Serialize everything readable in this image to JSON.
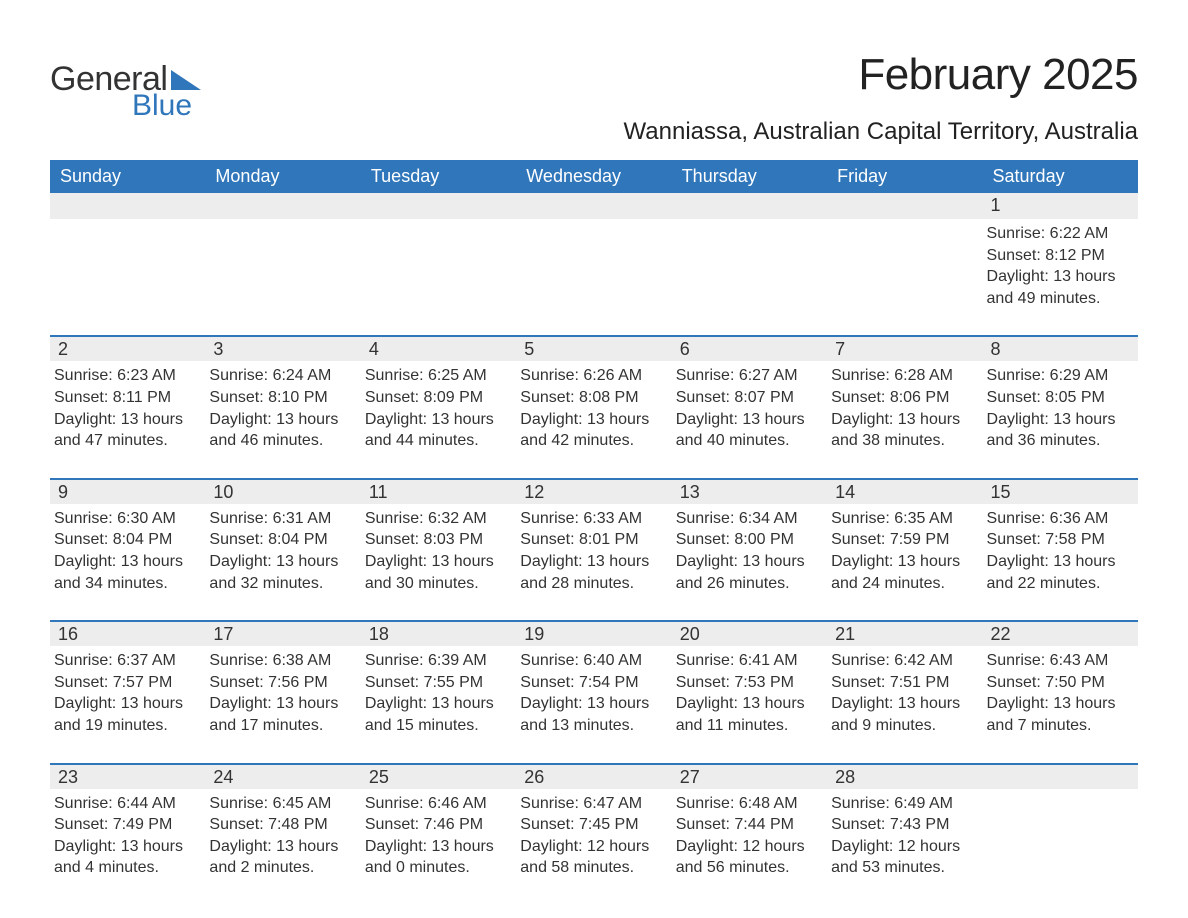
{
  "logo": {
    "text1": "General",
    "text2": "Blue",
    "tri_color": "#2f76bb"
  },
  "title": "February 2025",
  "location": "Wanniassa, Australian Capital Territory, Australia",
  "colors": {
    "header_bg": "#2f76bb",
    "header_text": "#ffffff",
    "daynum_bg": "#ededed",
    "border_top": "#2f76bb",
    "text": "#333333",
    "background": "#ffffff"
  },
  "fonts": {
    "title_pt": 44,
    "location_pt": 24,
    "header_pt": 18,
    "body_pt": 16
  },
  "day_headers": [
    "Sunday",
    "Monday",
    "Tuesday",
    "Wednesday",
    "Thursday",
    "Friday",
    "Saturday"
  ],
  "weeks": [
    [
      {
        "n": "",
        "sr": "",
        "ss": "",
        "dl": ""
      },
      {
        "n": "",
        "sr": "",
        "ss": "",
        "dl": ""
      },
      {
        "n": "",
        "sr": "",
        "ss": "",
        "dl": ""
      },
      {
        "n": "",
        "sr": "",
        "ss": "",
        "dl": ""
      },
      {
        "n": "",
        "sr": "",
        "ss": "",
        "dl": ""
      },
      {
        "n": "",
        "sr": "",
        "ss": "",
        "dl": ""
      },
      {
        "n": "1",
        "sr": "Sunrise: 6:22 AM",
        "ss": "Sunset: 8:12 PM",
        "dl": "Daylight: 13 hours and 49 minutes."
      }
    ],
    [
      {
        "n": "2",
        "sr": "Sunrise: 6:23 AM",
        "ss": "Sunset: 8:11 PM",
        "dl": "Daylight: 13 hours and 47 minutes."
      },
      {
        "n": "3",
        "sr": "Sunrise: 6:24 AM",
        "ss": "Sunset: 8:10 PM",
        "dl": "Daylight: 13 hours and 46 minutes."
      },
      {
        "n": "4",
        "sr": "Sunrise: 6:25 AM",
        "ss": "Sunset: 8:09 PM",
        "dl": "Daylight: 13 hours and 44 minutes."
      },
      {
        "n": "5",
        "sr": "Sunrise: 6:26 AM",
        "ss": "Sunset: 8:08 PM",
        "dl": "Daylight: 13 hours and 42 minutes."
      },
      {
        "n": "6",
        "sr": "Sunrise: 6:27 AM",
        "ss": "Sunset: 8:07 PM",
        "dl": "Daylight: 13 hours and 40 minutes."
      },
      {
        "n": "7",
        "sr": "Sunrise: 6:28 AM",
        "ss": "Sunset: 8:06 PM",
        "dl": "Daylight: 13 hours and 38 minutes."
      },
      {
        "n": "8",
        "sr": "Sunrise: 6:29 AM",
        "ss": "Sunset: 8:05 PM",
        "dl": "Daylight: 13 hours and 36 minutes."
      }
    ],
    [
      {
        "n": "9",
        "sr": "Sunrise: 6:30 AM",
        "ss": "Sunset: 8:04 PM",
        "dl": "Daylight: 13 hours and 34 minutes."
      },
      {
        "n": "10",
        "sr": "Sunrise: 6:31 AM",
        "ss": "Sunset: 8:04 PM",
        "dl": "Daylight: 13 hours and 32 minutes."
      },
      {
        "n": "11",
        "sr": "Sunrise: 6:32 AM",
        "ss": "Sunset: 8:03 PM",
        "dl": "Daylight: 13 hours and 30 minutes."
      },
      {
        "n": "12",
        "sr": "Sunrise: 6:33 AM",
        "ss": "Sunset: 8:01 PM",
        "dl": "Daylight: 13 hours and 28 minutes."
      },
      {
        "n": "13",
        "sr": "Sunrise: 6:34 AM",
        "ss": "Sunset: 8:00 PM",
        "dl": "Daylight: 13 hours and 26 minutes."
      },
      {
        "n": "14",
        "sr": "Sunrise: 6:35 AM",
        "ss": "Sunset: 7:59 PM",
        "dl": "Daylight: 13 hours and 24 minutes."
      },
      {
        "n": "15",
        "sr": "Sunrise: 6:36 AM",
        "ss": "Sunset: 7:58 PM",
        "dl": "Daylight: 13 hours and 22 minutes."
      }
    ],
    [
      {
        "n": "16",
        "sr": "Sunrise: 6:37 AM",
        "ss": "Sunset: 7:57 PM",
        "dl": "Daylight: 13 hours and 19 minutes."
      },
      {
        "n": "17",
        "sr": "Sunrise: 6:38 AM",
        "ss": "Sunset: 7:56 PM",
        "dl": "Daylight: 13 hours and 17 minutes."
      },
      {
        "n": "18",
        "sr": "Sunrise: 6:39 AM",
        "ss": "Sunset: 7:55 PM",
        "dl": "Daylight: 13 hours and 15 minutes."
      },
      {
        "n": "19",
        "sr": "Sunrise: 6:40 AM",
        "ss": "Sunset: 7:54 PM",
        "dl": "Daylight: 13 hours and 13 minutes."
      },
      {
        "n": "20",
        "sr": "Sunrise: 6:41 AM",
        "ss": "Sunset: 7:53 PM",
        "dl": "Daylight: 13 hours and 11 minutes."
      },
      {
        "n": "21",
        "sr": "Sunrise: 6:42 AM",
        "ss": "Sunset: 7:51 PM",
        "dl": "Daylight: 13 hours and 9 minutes."
      },
      {
        "n": "22",
        "sr": "Sunrise: 6:43 AM",
        "ss": "Sunset: 7:50 PM",
        "dl": "Daylight: 13 hours and 7 minutes."
      }
    ],
    [
      {
        "n": "23",
        "sr": "Sunrise: 6:44 AM",
        "ss": "Sunset: 7:49 PM",
        "dl": "Daylight: 13 hours and 4 minutes."
      },
      {
        "n": "24",
        "sr": "Sunrise: 6:45 AM",
        "ss": "Sunset: 7:48 PM",
        "dl": "Daylight: 13 hours and 2 minutes."
      },
      {
        "n": "25",
        "sr": "Sunrise: 6:46 AM",
        "ss": "Sunset: 7:46 PM",
        "dl": "Daylight: 13 hours and 0 minutes."
      },
      {
        "n": "26",
        "sr": "Sunrise: 6:47 AM",
        "ss": "Sunset: 7:45 PM",
        "dl": "Daylight: 12 hours and 58 minutes."
      },
      {
        "n": "27",
        "sr": "Sunrise: 6:48 AM",
        "ss": "Sunset: 7:44 PM",
        "dl": "Daylight: 12 hours and 56 minutes."
      },
      {
        "n": "28",
        "sr": "Sunrise: 6:49 AM",
        "ss": "Sunset: 7:43 PM",
        "dl": "Daylight: 12 hours and 53 minutes."
      },
      {
        "n": "",
        "sr": "",
        "ss": "",
        "dl": ""
      }
    ]
  ]
}
